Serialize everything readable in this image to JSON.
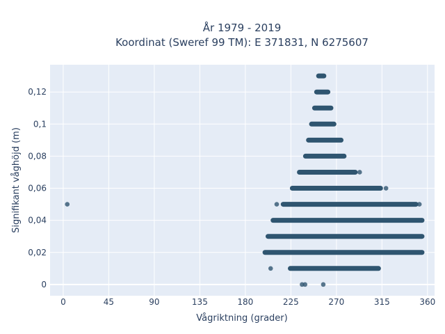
{
  "chart_data": {
    "type": "scatter",
    "title": "År 1979 - 2019",
    "subtitle": "Koordinat (Sweref 99 TM): E 371831, N 6275607",
    "xlabel": "Vågriktning (grader)",
    "ylabel": "Signifikant våghöjd (m)",
    "xlim": [
      -13,
      367
    ],
    "ylim": [
      -0.007,
      0.137
    ],
    "x_ticks": [
      0,
      45,
      90,
      135,
      180,
      225,
      270,
      315,
      360
    ],
    "x_tick_labels": [
      "0",
      "45",
      "90",
      "135",
      "180",
      "225",
      "270",
      "315",
      "360"
    ],
    "y_ticks": [
      0,
      0.02,
      0.04,
      0.06,
      0.08,
      0.1,
      0.12
    ],
    "y_tick_labels": [
      "0",
      "0,02",
      "0,04",
      "0,06",
      "0,08",
      "0,1",
      "0,12"
    ],
    "grid": true,
    "marker_color": "#2f5570",
    "plot_background": "#e5ecf6",
    "bands": [
      {
        "y": 0.13,
        "x_min": 250,
        "x_max": 260
      },
      {
        "y": 0.12,
        "x_min": 248,
        "x_max": 264
      },
      {
        "y": 0.11,
        "x_min": 246,
        "x_max": 267
      },
      {
        "y": 0.1,
        "x_min": 243,
        "x_max": 270
      },
      {
        "y": 0.09,
        "x_min": 240,
        "x_max": 277
      },
      {
        "y": 0.08,
        "x_min": 237,
        "x_max": 280
      },
      {
        "y": 0.07,
        "x_min": 231,
        "x_max": 291
      },
      {
        "y": 0.06,
        "x_min": 224,
        "x_max": 316
      },
      {
        "y": 0.05,
        "x_min": 215,
        "x_max": 351
      },
      {
        "y": 0.04,
        "x_min": 205,
        "x_max": 357
      },
      {
        "y": 0.03,
        "x_min": 200,
        "x_max": 357
      },
      {
        "y": 0.02,
        "x_min": 197,
        "x_max": 357
      },
      {
        "y": 0.01,
        "x_min": 222,
        "x_max": 314
      }
    ],
    "points": [
      {
        "x": 4,
        "y": 0.05
      },
      {
        "x": 211,
        "y": 0.05
      },
      {
        "x": 352,
        "y": 0.05
      },
      {
        "x": 319,
        "y": 0.06
      },
      {
        "x": 293,
        "y": 0.07
      },
      {
        "x": 205,
        "y": 0.01
      },
      {
        "x": 236,
        "y": 0.0
      },
      {
        "x": 239,
        "y": 0.0
      },
      {
        "x": 257,
        "y": 0.0
      }
    ]
  }
}
